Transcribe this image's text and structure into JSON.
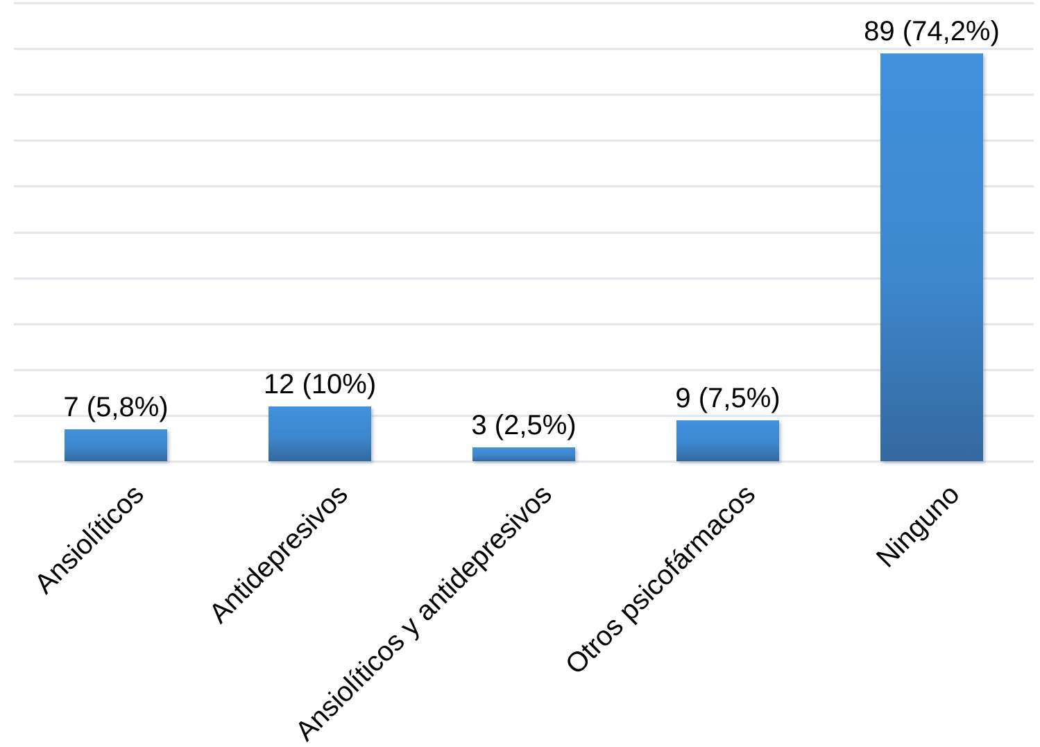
{
  "page": {
    "background": "#FFFFFF"
  },
  "chart_data": {
    "type": "bar",
    "title": "",
    "xlabel": "",
    "ylabel": "",
    "categories": [
      "Ansiolíticos",
      "Antidepresivos",
      "Ansiolíticos y antidepresivos",
      "Otros psicofármacos",
      "Ninguno"
    ],
    "values": [
      7,
      12,
      3,
      9,
      89
    ],
    "percentages": [
      5.8,
      10,
      2.5,
      7.5,
      74.2
    ],
    "data_labels": [
      "7 (5,8%)",
      "12 (10%)",
      "3 (2,5%)",
      "9 (7,5%)",
      "89 (74,2%)"
    ],
    "ylim": [
      0,
      100
    ],
    "grid_step": 10,
    "grid": true,
    "y_tick_labels_visible": false,
    "legend": "none",
    "x_label_rotation_deg": 45,
    "colors": {
      "bar_gradient_top": "#4291DC",
      "bar_gradient_bottom": "#34699E",
      "gridline": "#E3E7ED",
      "text": "#000000",
      "background": "#FFFFFF"
    }
  }
}
